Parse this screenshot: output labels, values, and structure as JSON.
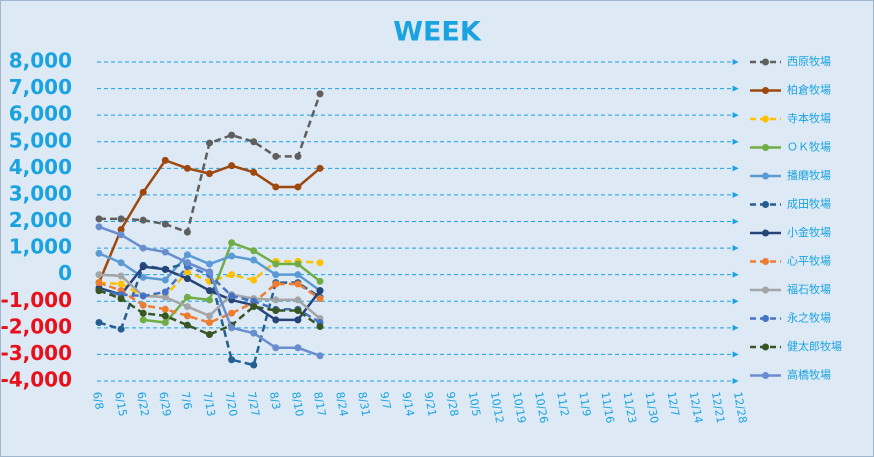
{
  "chart_data": {
    "type": "line",
    "title": "WEEK",
    "categories": [
      "6/8",
      "6/15",
      "6/22",
      "6/29",
      "7/6",
      "7/13",
      "7/20",
      "7/27",
      "8/3",
      "8/10",
      "8/17",
      "8/24",
      "8/31",
      "9/7",
      "9/14",
      "9/21",
      "9/28",
      "10/5",
      "10/12",
      "10/19",
      "10/26",
      "11/2",
      "11/9",
      "11/16",
      "11/23",
      "11/30",
      "12/7",
      "12/14",
      "12/21",
      "12/28"
    ],
    "ylim": [
      -4000,
      8000
    ],
    "yticks": [
      {
        "value": 8000,
        "label": "8,000"
      },
      {
        "value": 7000,
        "label": "7,000"
      },
      {
        "value": 6000,
        "label": "6,000"
      },
      {
        "value": 5000,
        "label": "5,000"
      },
      {
        "value": 4000,
        "label": "4,000"
      },
      {
        "value": 3000,
        "label": "3,000"
      },
      {
        "value": 2000,
        "label": "2,000"
      },
      {
        "value": 1000,
        "label": "1,000"
      },
      0,
      {
        "value": -1000,
        "label": "-1,000"
      },
      {
        "value": -2000,
        "label": "-2,000"
      },
      {
        "value": -3000,
        "label": "-3,000"
      },
      {
        "value": -4000,
        "label": "-4,000"
      }
    ],
    "grid": true,
    "positive_tick_color": "#1aa3e0",
    "negative_tick_color": "#e8101a",
    "legend": "right",
    "series": [
      {
        "name": "西原牧場",
        "color": "#5f5f5f",
        "dashed": true,
        "values": [
          2100,
          2100,
          2050,
          1900,
          1600,
          4950,
          5250,
          5000,
          4450,
          4450,
          6800,
          null,
          null,
          null,
          null,
          null,
          null,
          null,
          null,
          null,
          null,
          null,
          null,
          null,
          null,
          null,
          null,
          null,
          null,
          null
        ]
      },
      {
        "name": "柏倉牧場",
        "color": "#9e480e",
        "dashed": false,
        "values": [
          -300,
          1700,
          3100,
          4300,
          4000,
          3800,
          4100,
          3850,
          3300,
          3300,
          4000,
          null,
          null,
          null,
          null,
          null,
          null,
          null,
          null,
          null,
          null,
          null,
          null,
          null,
          null,
          null,
          null,
          null,
          null,
          null
        ]
      },
      {
        "name": "寺本牧場",
        "color": "#ffc000",
        "dashed": true,
        "values": [
          -300,
          -350,
          -800,
          -800,
          100,
          -250,
          0,
          -200,
          500,
          500,
          450,
          null,
          null,
          null,
          null,
          null,
          null,
          null,
          null,
          null,
          null,
          null,
          null,
          null,
          null,
          null,
          null,
          null,
          null,
          null
        ]
      },
      {
        "name": "ＯＫ牧場",
        "color": "#70ad47",
        "dashed": false,
        "values": [
          null,
          null,
          -1700,
          -1800,
          -850,
          -950,
          1200,
          900,
          400,
          400,
          -250,
          null,
          null,
          null,
          null,
          null,
          null,
          null,
          null,
          null,
          null,
          null,
          null,
          null,
          null,
          null,
          null,
          null,
          null,
          null
        ]
      },
      {
        "name": "播磨牧場",
        "color": "#5b9bd5",
        "dashed": false,
        "values": [
          800,
          450,
          -100,
          -200,
          750,
          400,
          700,
          550,
          0,
          0,
          -600,
          null,
          null,
          null,
          null,
          null,
          null,
          null,
          null,
          null,
          null,
          null,
          null,
          null,
          null,
          null,
          null,
          null,
          null,
          null
        ]
      },
      {
        "name": "成田牧場",
        "color": "#255e91",
        "dashed": true,
        "values": [
          -1800,
          -2050,
          350,
          200,
          450,
          100,
          -3200,
          -3400,
          -300,
          -300,
          -850,
          null,
          null,
          null,
          null,
          null,
          null,
          null,
          null,
          null,
          null,
          null,
          null,
          null,
          null,
          null,
          null,
          null,
          null,
          null
        ]
      },
      {
        "name": "小金牧場",
        "color": "#264478",
        "dashed": false,
        "values": [
          -500,
          -750,
          300,
          200,
          -150,
          -600,
          -950,
          -1150,
          -1700,
          -1700,
          -600,
          null,
          null,
          null,
          null,
          null,
          null,
          null,
          null,
          null,
          null,
          null,
          null,
          null,
          null,
          null,
          null,
          null,
          null,
          null
        ]
      },
      {
        "name": "心平牧場",
        "color": "#ed7d31",
        "dashed": true,
        "values": [
          -300,
          -600,
          -1150,
          -1300,
          -1550,
          -1800,
          -1450,
          -1050,
          -350,
          -350,
          -900,
          null,
          null,
          null,
          null,
          null,
          null,
          null,
          null,
          null,
          null,
          null,
          null,
          null,
          null,
          null,
          null,
          null,
          null,
          null
        ]
      },
      {
        "name": "福石牧場",
        "color": "#a5a5a5",
        "dashed": false,
        "values": [
          0,
          -50,
          -800,
          -850,
          -1200,
          -1550,
          -750,
          -900,
          -950,
          -950,
          -1650,
          null,
          null,
          null,
          null,
          null,
          null,
          null,
          null,
          null,
          null,
          null,
          null,
          null,
          null,
          null,
          null,
          null,
          null,
          null
        ]
      },
      {
        "name": "永之牧場",
        "color": "#4472c4",
        "dashed": true,
        "values": [
          -600,
          -750,
          -800,
          -650,
          300,
          0,
          -800,
          -1000,
          -1300,
          -1300,
          -1800,
          null,
          null,
          null,
          null,
          null,
          null,
          null,
          null,
          null,
          null,
          null,
          null,
          null,
          null,
          null,
          null,
          null,
          null,
          null
        ]
      },
      {
        "name": "健太郎牧場",
        "color": "#375623",
        "dashed": true,
        "values": [
          -600,
          -900,
          -1450,
          -1550,
          -1900,
          -2250,
          -1900,
          -1200,
          -1350,
          -1350,
          -1950,
          null,
          null,
          null,
          null,
          null,
          null,
          null,
          null,
          null,
          null,
          null,
          null,
          null,
          null,
          null,
          null,
          null,
          null,
          null
        ]
      },
      {
        "name": "高橋牧場",
        "color": "#698ed0",
        "dashed": false,
        "values": [
          1800,
          1500,
          1000,
          850,
          450,
          100,
          -2000,
          -2200,
          -2750,
          -2750,
          -3050,
          null,
          null,
          null,
          null,
          null,
          null,
          null,
          null,
          null,
          null,
          null,
          null,
          null,
          null,
          null,
          null,
          null,
          null,
          null
        ]
      }
    ]
  }
}
